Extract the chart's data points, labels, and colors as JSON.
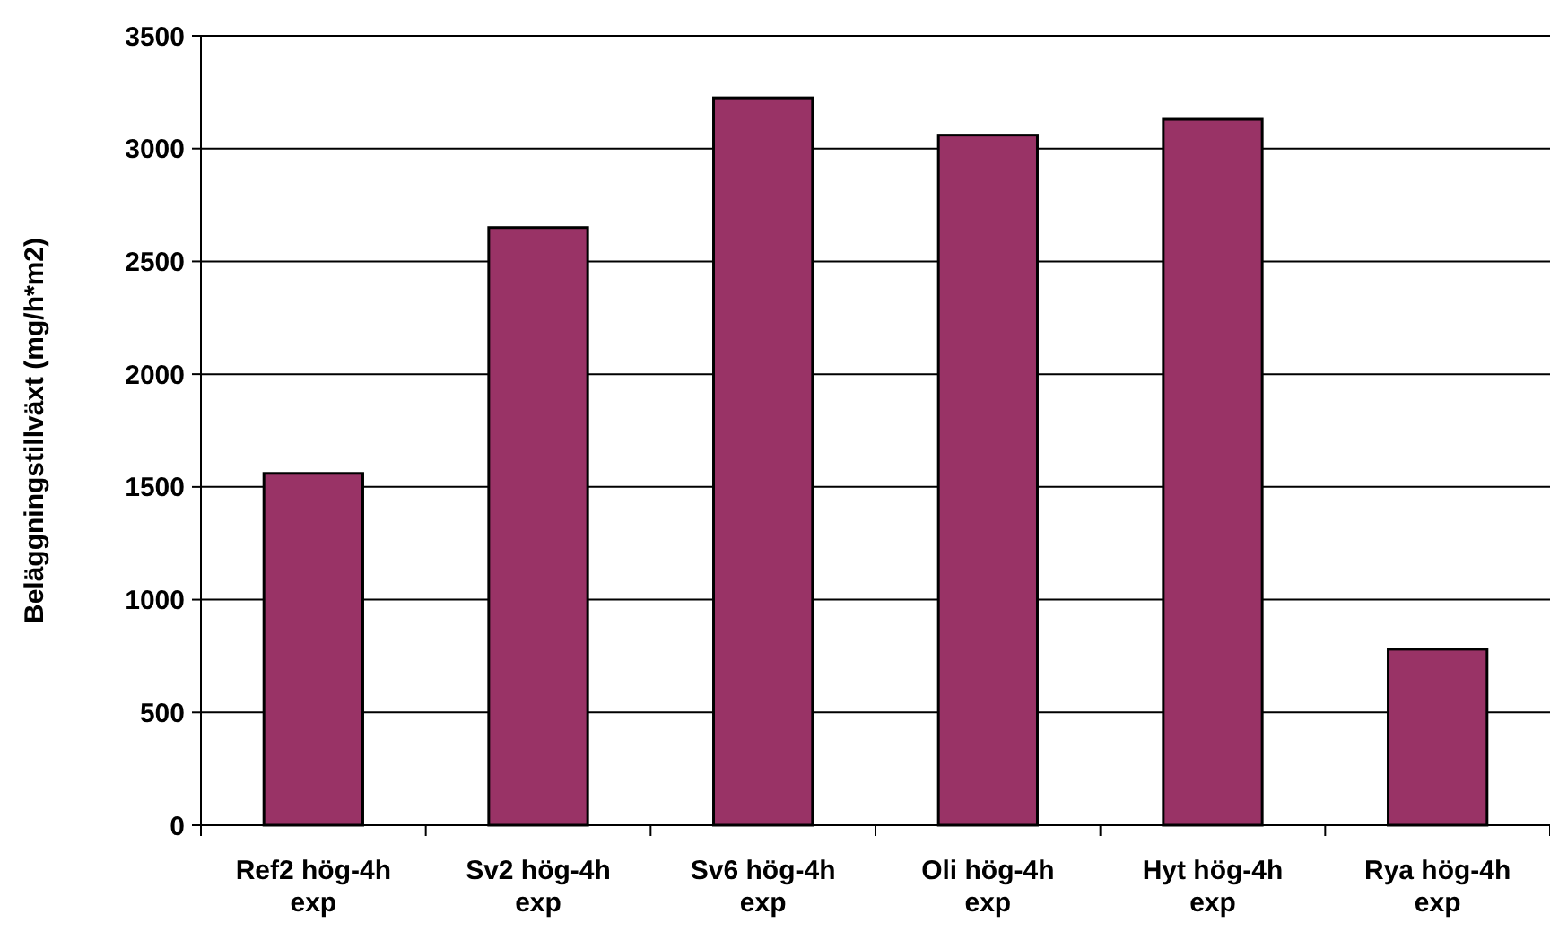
{
  "chart_data": {
    "type": "bar",
    "ylabel": "Beläggningstillväxt (mg/h*m2)",
    "categories": [
      "Ref2 hög-4h exp",
      "Sv2 hög-4h exp",
      "Sv6 hög-4h exp",
      "Oli hög-4h exp",
      "Hyt hög-4h exp",
      "Rya hög-4h exp"
    ],
    "values": [
      1560,
      2650,
      3225,
      3060,
      3130,
      780
    ],
    "color": "#993366",
    "ylim": [
      0,
      3500
    ],
    "yticks": [
      0,
      500,
      1000,
      1500,
      2000,
      2500,
      3000,
      3500
    ],
    "grid": "y"
  }
}
